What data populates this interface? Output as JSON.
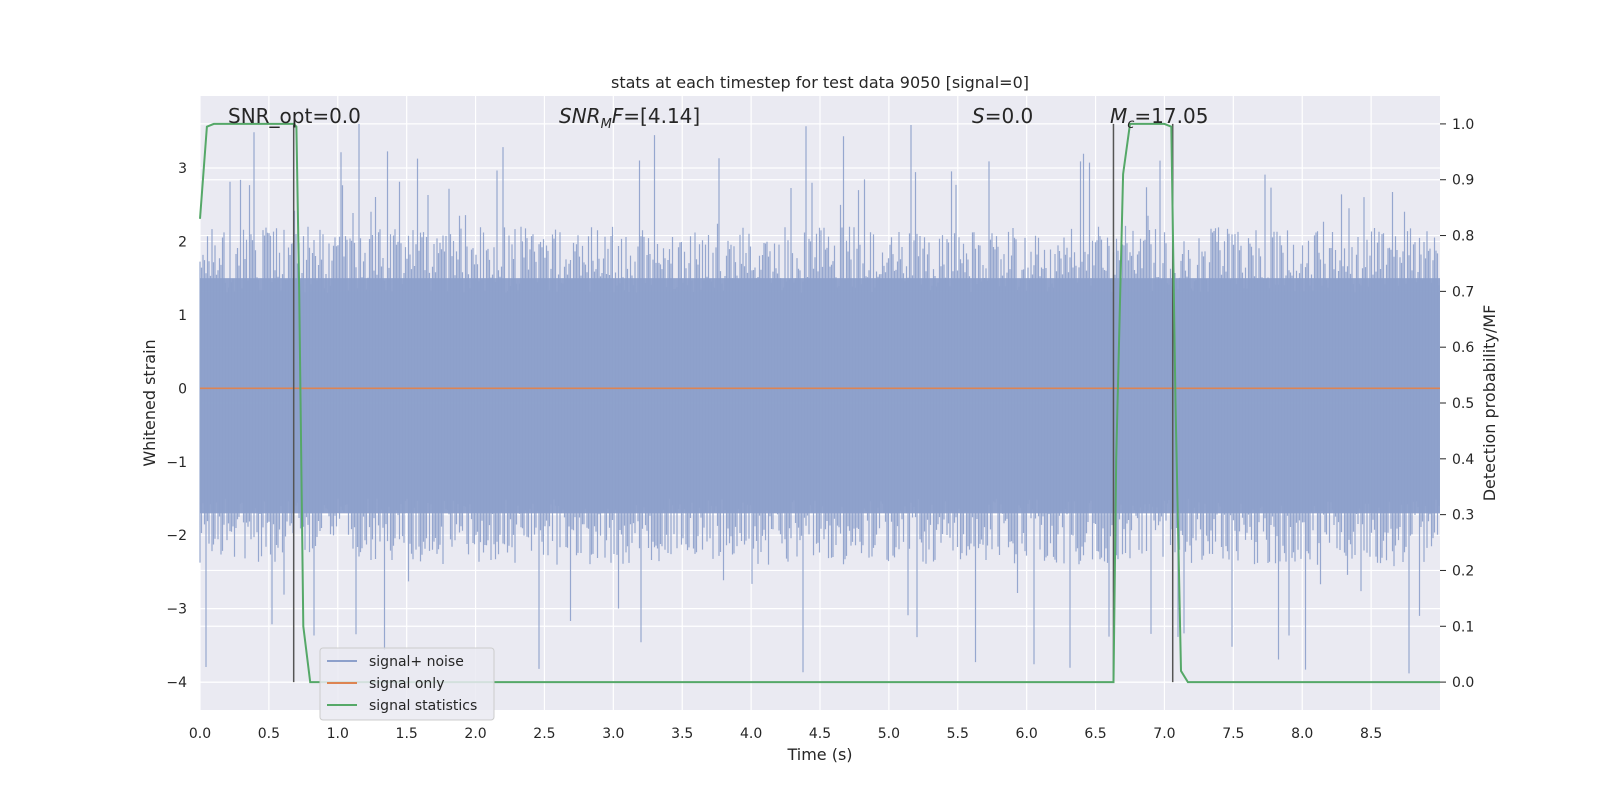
{
  "chart_data": {
    "type": "line",
    "title": "stats at each timestep for test data 9050 [signal=0]",
    "xlabel": "Time (s)",
    "ylabel": "Whitened strain",
    "y2label": "Detection probability/MF",
    "xlim": [
      0.0,
      9.0
    ],
    "ylim": [
      -4.38,
      3.98
    ],
    "y2lim": [
      -0.05,
      1.05
    ],
    "xticks": [
      "0.0",
      "0.5",
      "1.0",
      "1.5",
      "2.0",
      "2.5",
      "3.0",
      "3.5",
      "4.0",
      "4.5",
      "5.0",
      "5.5",
      "6.0",
      "6.5",
      "7.0",
      "7.5",
      "8.0",
      "8.5"
    ],
    "yticks": [
      "3",
      "2",
      "1",
      "0",
      "−1",
      "−2",
      "−3",
      "−4"
    ],
    "y2ticks": [
      "1.0",
      "0.9",
      "0.8",
      "0.7",
      "0.6",
      "0.5",
      "0.4",
      "0.3",
      "0.2",
      "0.1",
      "0.0"
    ],
    "grid": true,
    "legend_position": "lower-left",
    "colors": {
      "background": "#eaeaf2",
      "noise": "#8da0cb",
      "signal": "#dd8452",
      "stats": "#55a868",
      "vline": "#555555"
    },
    "annotations": {
      "snr_opt": "SNR_opt=0.0",
      "snr_mf_base": "SNR",
      "snr_mf_sub": "M",
      "snr_mf_rest": "F=[4.14]",
      "s_base": "S",
      "s_rest": "=0.0",
      "mc_base": "M",
      "mc_sub": "c",
      "mc_rest": "=17.05"
    },
    "series": [
      {
        "name": "signal+ noise",
        "kind": "dense-noise",
        "envelope_core": [
          -1.7,
          1.5
        ],
        "spike_max": 3.6,
        "spike_min": -4.0
      },
      {
        "name": "signal only",
        "x": [
          0.0,
          9.0
        ],
        "y": [
          0.0,
          0.0
        ]
      },
      {
        "name": "signal statistics",
        "axis": "right",
        "x": [
          0.0,
          0.05,
          0.1,
          0.5,
          0.68,
          0.7,
          0.72,
          0.75,
          0.8,
          0.85,
          6.0,
          6.6,
          6.63,
          6.65,
          6.7,
          6.75,
          6.8,
          7.0,
          7.05,
          7.08,
          7.12,
          7.17,
          9.0
        ],
        "y": [
          0.83,
          0.995,
          1.0,
          1.0,
          1.0,
          0.995,
          0.7,
          0.1,
          0.0,
          0.0,
          0.0,
          0.0,
          0.0,
          0.4,
          0.91,
          1.0,
          1.0,
          1.0,
          0.995,
          0.5,
          0.02,
          0.0,
          0.0
        ]
      }
    ],
    "vlines": [
      0.68,
      6.63,
      7.06
    ]
  }
}
